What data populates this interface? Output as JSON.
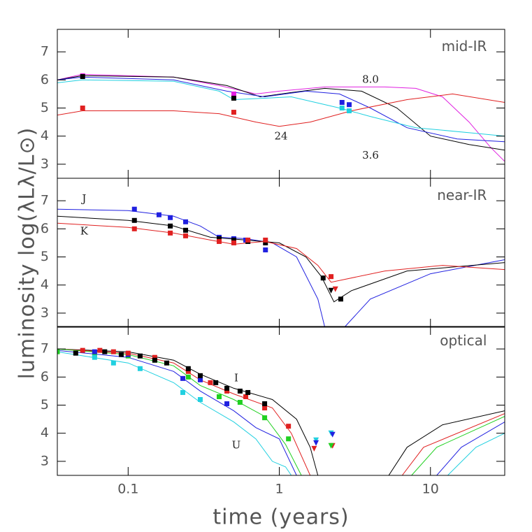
{
  "ylabel": "luminosity log(λLλ/L⊙)",
  "xlabel": "time (years)",
  "chart_data": [
    {
      "type": "line",
      "xscale": "log",
      "xlim": [
        0.034,
        31
      ],
      "ylim": [
        2.5,
        7.8
      ],
      "yticks": [
        3,
        4,
        5,
        6,
        7
      ],
      "annotations": [
        "mid-IR",
        "8.0",
        "24",
        "3.6"
      ],
      "lines": [
        {
          "color": "#e020e0",
          "x": [
            0.034,
            0.05,
            0.2,
            0.4,
            0.7,
            1,
            2,
            5,
            8,
            12,
            18,
            25,
            31
          ],
          "values": [
            6.0,
            6.2,
            6.1,
            5.8,
            5.5,
            5.6,
            5.75,
            5.75,
            5.7,
            5.4,
            4.5,
            3.6,
            3.1
          ]
        },
        {
          "color": "#000000",
          "x": [
            0.034,
            0.05,
            0.2,
            0.45,
            0.75,
            1.2,
            2,
            3.5,
            6,
            10,
            18,
            31
          ],
          "values": [
            6.0,
            6.15,
            6.1,
            5.8,
            5.4,
            5.55,
            5.7,
            5.6,
            5.0,
            4.0,
            3.7,
            3.5
          ]
        },
        {
          "color": "#2020e0",
          "x": [
            0.034,
            0.05,
            0.2,
            0.45,
            0.8,
            1.5,
            2.5,
            4,
            7,
            15,
            31
          ],
          "values": [
            6.0,
            6.1,
            6.0,
            5.6,
            5.4,
            5.6,
            5.5,
            5.0,
            4.3,
            3.9,
            3.8
          ]
        },
        {
          "color": "#20d0e0",
          "x": [
            0.034,
            0.05,
            0.2,
            0.4,
            0.5,
            0.8,
            1.2,
            2.5,
            4,
            8,
            20,
            31
          ],
          "values": [
            5.9,
            6.0,
            5.95,
            5.6,
            5.3,
            5.35,
            5.4,
            5.0,
            4.7,
            4.3,
            4.1,
            4.0
          ]
        },
        {
          "color": "#e02020",
          "x": [
            0.034,
            0.05,
            0.2,
            0.4,
            0.7,
            1.0,
            1.6,
            3,
            7,
            14,
            31
          ],
          "values": [
            4.75,
            4.9,
            4.9,
            4.8,
            4.5,
            4.35,
            4.5,
            4.9,
            5.3,
            5.5,
            5.2
          ]
        }
      ],
      "points": [
        {
          "color": "#e020e0",
          "marker": "square",
          "x": [
            0.05,
            0.5
          ],
          "values": [
            6.15,
            5.5
          ]
        },
        {
          "color": "#000000",
          "marker": "square",
          "x": [
            0.05,
            0.5
          ],
          "values": [
            6.12,
            5.35
          ]
        },
        {
          "color": "#2020e0",
          "marker": "square",
          "x": [
            2.6,
            2.9
          ],
          "values": [
            5.2,
            5.12
          ]
        },
        {
          "color": "#20d0e0",
          "marker": "square",
          "x": [
            2.6,
            2.9
          ],
          "values": [
            5.0,
            4.9
          ]
        },
        {
          "color": "#e02020",
          "marker": "square",
          "x": [
            0.05,
            0.5
          ],
          "values": [
            5.0,
            4.85
          ]
        }
      ]
    },
    {
      "type": "line",
      "xscale": "log",
      "xlim": [
        0.034,
        31
      ],
      "ylim": [
        2.5,
        7.8
      ],
      "yticks": [
        3,
        4,
        5,
        6,
        7
      ],
      "annotations": [
        "near-IR",
        "J",
        "K"
      ],
      "lines": [
        {
          "color": "#2020e0",
          "x": [
            0.034,
            0.1,
            0.2,
            0.3,
            0.4,
            0.6,
            0.9,
            1.3,
            1.8,
            2.0,
            null,
            2.7,
            4,
            10,
            31
          ],
          "values": [
            6.7,
            6.65,
            6.45,
            6.1,
            5.7,
            5.65,
            5.5,
            5.0,
            3.5,
            2.5,
            null,
            2.5,
            3.5,
            4.4,
            4.9
          ]
        },
        {
          "color": "#000000",
          "x": [
            0.034,
            0.1,
            0.2,
            0.35,
            0.6,
            1,
            1.5,
            1.9,
            2.3,
            3,
            7,
            31
          ],
          "values": [
            6.45,
            6.3,
            6.1,
            5.7,
            5.6,
            5.5,
            5.0,
            4.3,
            3.4,
            3.8,
            4.5,
            4.8
          ]
        },
        {
          "color": "#e02020",
          "x": [
            0.034,
            0.1,
            0.2,
            0.35,
            0.5,
            0.8,
            1.3,
            1.8,
            2.2,
            5,
            12,
            31
          ],
          "values": [
            6.2,
            6.05,
            5.85,
            5.6,
            5.45,
            5.55,
            5.3,
            4.7,
            4.1,
            4.5,
            4.7,
            4.55
          ]
        }
      ],
      "points": [
        {
          "color": "#2020e0",
          "marker": "square",
          "x": [
            0.11,
            0.16,
            0.19,
            0.24,
            0.4,
            0.5,
            0.6,
            0.81
          ],
          "values": [
            6.7,
            6.5,
            6.4,
            6.25,
            5.7,
            5.65,
            5.6,
            5.25
          ]
        },
        {
          "color": "#000000",
          "marker": "square",
          "x": [
            0.11,
            0.19,
            0.24,
            0.4,
            0.5,
            0.62,
            0.81,
            1.95,
            2.55
          ],
          "values": [
            6.3,
            6.1,
            5.95,
            5.65,
            5.6,
            5.55,
            5.5,
            4.25,
            3.5
          ]
        },
        {
          "color": "#e02020",
          "marker": "square",
          "x": [
            0.11,
            0.19,
            0.24,
            0.4,
            0.5,
            0.62,
            0.81,
            2.2
          ],
          "values": [
            6.0,
            5.85,
            5.75,
            5.55,
            5.5,
            5.6,
            5.6,
            4.3
          ]
        },
        {
          "color": "#000000",
          "marker": "triangle",
          "x": [
            2.2
          ],
          "values": [
            3.8
          ]
        },
        {
          "color": "#e02020",
          "marker": "triangle",
          "x": [
            2.35
          ],
          "values": [
            3.85
          ]
        }
      ]
    },
    {
      "type": "line",
      "xscale": "log",
      "xlim": [
        0.034,
        31
      ],
      "ylim": [
        2.5,
        7.8
      ],
      "yticks": [
        3,
        4,
        5,
        6,
        7
      ],
      "xticks": [
        0.1,
        1,
        10
      ],
      "annotations": [
        "optical",
        "I",
        "U"
      ],
      "lines": [
        {
          "color": "#000000",
          "x": [
            0.034,
            0.1,
            0.2,
            0.3,
            0.5,
            0.9,
            1.3,
            1.6,
            1.8,
            null,
            5.3,
            7,
            12,
            31
          ],
          "values": [
            7.0,
            6.9,
            6.6,
            6.1,
            5.6,
            5.2,
            4.5,
            3.5,
            2.5,
            null,
            2.5,
            3.5,
            4.3,
            4.8
          ]
        },
        {
          "color": "#e02020",
          "x": [
            0.034,
            0.1,
            0.2,
            0.3,
            0.5,
            0.9,
            1.2,
            1.6,
            null,
            6.5,
            9,
            31
          ],
          "values": [
            7.0,
            6.85,
            6.5,
            5.9,
            5.4,
            4.9,
            4.0,
            2.5,
            null,
            2.5,
            3.5,
            4.7
          ]
        },
        {
          "color": "#20d020",
          "x": [
            0.034,
            0.1,
            0.2,
            0.3,
            0.5,
            0.8,
            1.1,
            1.4,
            null,
            7.5,
            11,
            31
          ],
          "values": [
            7.0,
            6.8,
            6.4,
            5.7,
            5.2,
            4.6,
            3.6,
            2.5,
            null,
            2.5,
            3.5,
            4.6
          ]
        },
        {
          "color": "#2020e0",
          "x": [
            0.034,
            0.1,
            0.2,
            0.3,
            0.5,
            0.7,
            1.0,
            1.3,
            null,
            11,
            16,
            31
          ],
          "values": [
            6.95,
            6.7,
            6.2,
            5.5,
            4.8,
            4.2,
            3.8,
            2.5,
            null,
            2.5,
            3.5,
            4.4
          ]
        },
        {
          "color": "#20d0e0",
          "x": [
            0.034,
            0.1,
            0.2,
            0.3,
            0.5,
            0.7,
            0.9,
            1.1,
            1.2,
            null,
            13,
            20,
            31
          ],
          "values": [
            6.9,
            6.5,
            5.8,
            5.1,
            4.4,
            3.8,
            3.0,
            2.8,
            2.5,
            null,
            2.5,
            3.5,
            4.0
          ]
        }
      ],
      "points": [
        {
          "color": "#20d020",
          "marker": "square",
          "x": [
            0.034,
            0.06,
            0.1,
            0.15,
            0.25,
            0.4,
            0.55,
            0.8,
            1.15
          ],
          "values": [
            6.9,
            6.8,
            6.75,
            6.6,
            6.0,
            5.3,
            5.1,
            4.55,
            3.8
          ]
        },
        {
          "color": "#20d0e0",
          "marker": "square",
          "x": [
            0.06,
            0.08,
            0.12,
            0.23,
            0.3
          ],
          "values": [
            6.7,
            6.5,
            6.3,
            5.45,
            5.2
          ]
        },
        {
          "color": "#2020e0",
          "marker": "square",
          "x": [
            0.06,
            0.1,
            0.23,
            0.3,
            0.45
          ],
          "values": [
            6.9,
            6.8,
            5.95,
            5.9,
            5.05
          ]
        },
        {
          "color": "#e02020",
          "marker": "square",
          "x": [
            0.05,
            0.065,
            0.08,
            0.1,
            0.15,
            0.25,
            0.35,
            0.45,
            0.6,
            0.8,
            1.15
          ],
          "values": [
            6.95,
            6.95,
            6.9,
            6.85,
            6.7,
            6.2,
            5.8,
            5.5,
            5.3,
            4.9,
            4.25
          ]
        },
        {
          "color": "#000000",
          "marker": "square",
          "x": [
            0.045,
            0.07,
            0.09,
            0.12,
            0.15,
            0.18,
            0.25,
            0.3,
            0.38,
            0.45,
            0.55,
            0.62,
            0.8
          ],
          "values": [
            6.85,
            6.9,
            6.8,
            6.75,
            6.6,
            6.5,
            6.3,
            6.05,
            5.8,
            5.6,
            5.5,
            5.45,
            5.05
          ]
        },
        {
          "color": "#20d0e0",
          "marker": "triangle",
          "x": [
            1.75,
            2.2
          ],
          "values": [
            3.75,
            4.0
          ]
        },
        {
          "color": "#2020e0",
          "marker": "triangle",
          "x": [
            1.75,
            2.25
          ],
          "values": [
            3.65,
            3.95
          ]
        },
        {
          "color": "#e02020",
          "marker": "triangle",
          "x": [
            1.7,
            2.25
          ],
          "values": [
            3.45,
            3.55
          ]
        },
        {
          "color": "#20d020",
          "marker": "triangle",
          "x": [
            2.2
          ],
          "values": [
            3.55
          ]
        }
      ]
    }
  ]
}
